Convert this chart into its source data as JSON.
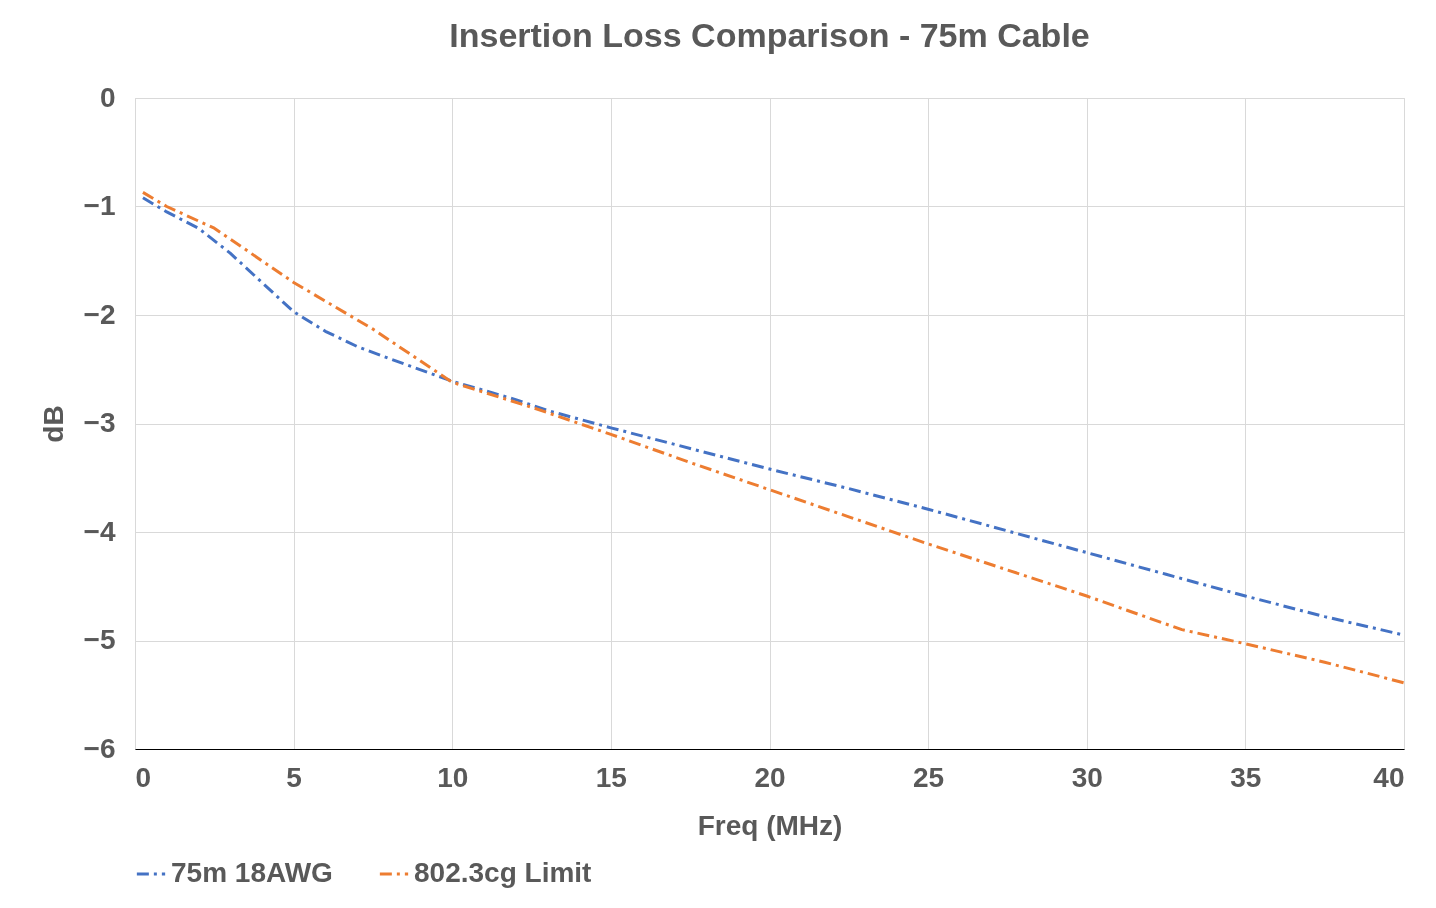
{
  "chart_data": {
    "type": "line",
    "title": "Insertion Loss Comparison - 75m Cable",
    "xlabel": "Freq (MHz)",
    "ylabel": "dB",
    "xlim": [
      0,
      40
    ],
    "xticks": [
      0,
      5,
      10,
      15,
      20,
      25,
      30,
      35,
      40
    ],
    "ylim": [
      -6,
      0
    ],
    "yticks": [
      0,
      -1,
      -2,
      -3,
      -4,
      -5,
      -6
    ],
    "grid": true,
    "legend": "bottom",
    "line_style": "dashed",
    "series": [
      {
        "name": "75m 18AWG",
        "color": "#4472c4",
        "x": [
          0.25,
          1,
          2,
          3,
          4,
          5,
          6,
          7,
          8,
          10,
          12,
          13,
          15,
          17.5,
          20,
          22.5,
          25,
          27.5,
          30,
          32.5,
          35,
          37.5,
          40
        ],
        "values": [
          -0.92,
          -1.05,
          -1.2,
          -1.43,
          -1.7,
          -1.97,
          -2.15,
          -2.29,
          -2.4,
          -2.61,
          -2.78,
          -2.88,
          -3.04,
          -3.23,
          -3.42,
          -3.6,
          -3.79,
          -3.99,
          -4.19,
          -4.39,
          -4.59,
          -4.78,
          -4.95
        ]
      },
      {
        "name": "802.3cg Limit",
        "color": "#ed7d31",
        "x": [
          0.25,
          1,
          2.5,
          5,
          7.5,
          10,
          12.5,
          15,
          17.5,
          20,
          22.5,
          25,
          27.5,
          30,
          33,
          35,
          37.5,
          40
        ],
        "values": [
          -0.87,
          -1.0,
          -1.2,
          -1.7,
          -2.13,
          -2.62,
          -2.85,
          -3.1,
          -3.36,
          -3.61,
          -3.86,
          -4.11,
          -4.35,
          -4.59,
          -4.9,
          -5.03,
          -5.2,
          -5.39
        ]
      }
    ]
  }
}
